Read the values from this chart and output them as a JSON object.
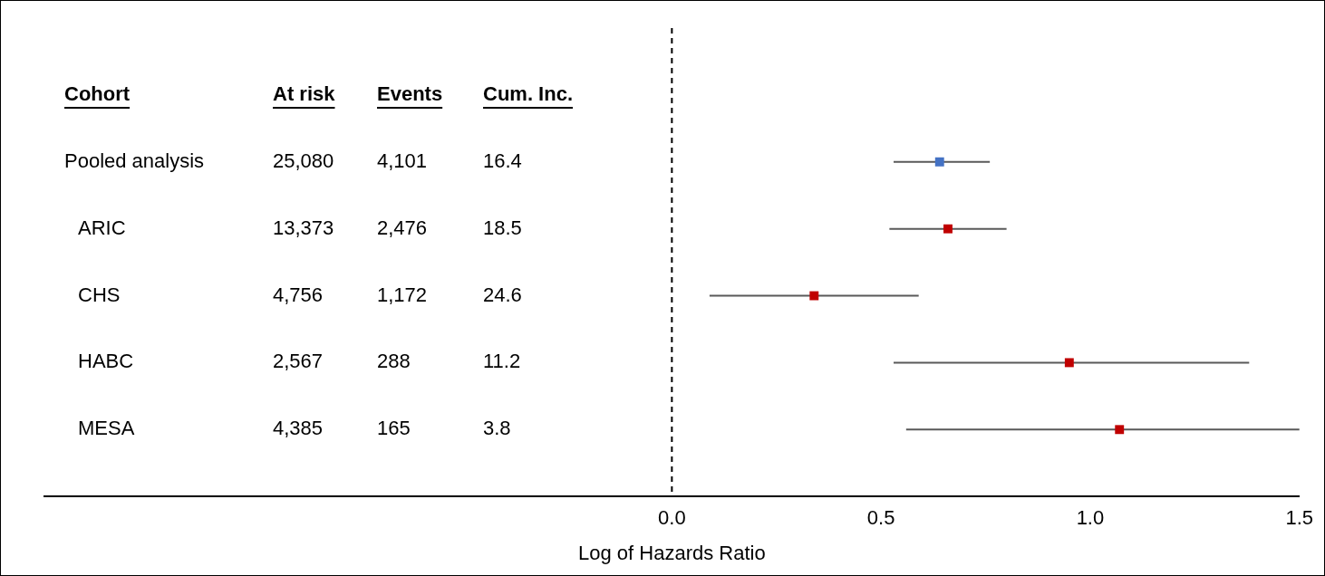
{
  "chart_data": {
    "type": "scatter",
    "orientation": "horizontal",
    "categories": [
      "Pooled analysis",
      "ARIC",
      "CHS",
      "HABC",
      "MESA"
    ],
    "values": [
      0.64,
      0.66,
      0.34,
      0.95,
      1.07
    ],
    "errors": [
      [
        0.53,
        0.76
      ],
      [
        0.52,
        0.8
      ],
      [
        0.09,
        0.59
      ],
      [
        0.53,
        1.38
      ],
      [
        0.56,
        1.5
      ]
    ],
    "colors": [
      "#4472c4",
      "#c00000",
      "#c00000",
      "#c00000",
      "#c00000"
    ],
    "marker": "square",
    "xlim": [
      -1.5,
      1.5
    ],
    "xticks": [
      {
        "value": 0,
        "label": "0.0"
      },
      0.5,
      {
        "value": 1,
        "label": "1.0"
      },
      1.5
    ],
    "xlabel": "Log of Hazards Ratio",
    "ref_lines": [
      {
        "axis": "x",
        "value": 0,
        "line_style": "dashed",
        "color": "#000000"
      }
    ],
    "annotations": [
      "Cohort",
      "At risk",
      "Events",
      "Cum. Inc.",
      "25,080",
      "4,101",
      "16.4",
      "13,373",
      "2,476",
      "18.5",
      "4,756",
      "1,172",
      "24.6",
      "2,567",
      "288",
      "11.2",
      "4,385",
      "165",
      "3.8"
    ],
    "grid": false,
    "legend": false
  }
}
